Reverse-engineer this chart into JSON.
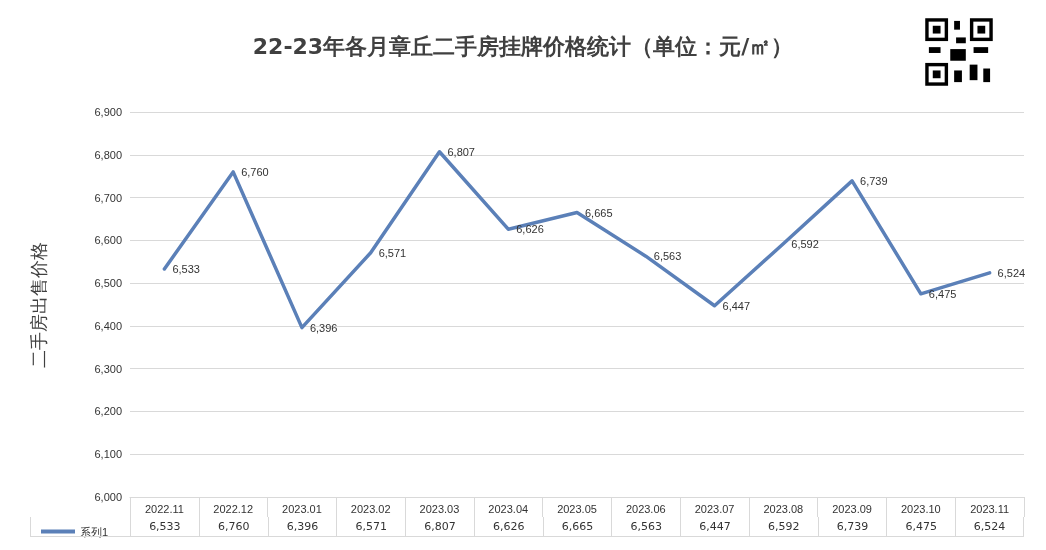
{
  "chart_data": {
    "type": "line",
    "title": "22-23年各月章丘二手房挂牌价格统计（单位：元/㎡）",
    "ylabel": "二手房出售价格",
    "categories": [
      "2022.11",
      "2022.12",
      "2023.01",
      "2023.02",
      "2023.03",
      "2023.04",
      "2023.05",
      "2023.06",
      "2023.07",
      "2023.08",
      "2023.09",
      "2023.10",
      "2023.11"
    ],
    "series": [
      {
        "name": "系列1",
        "color": "#5b80b8",
        "values": [
          6533,
          6760,
          6396,
          6571,
          6807,
          6626,
          6665,
          6563,
          6447,
          6592,
          6739,
          6475,
          6524
        ],
        "value_labels": [
          "6,533",
          "6,760",
          "6,396",
          "6,571",
          "6,807",
          "6,626",
          "6,665",
          "6,563",
          "6,447",
          "6,592",
          "6,739",
          "6,475",
          "6,524"
        ]
      }
    ],
    "ylim": [
      6000,
      6900
    ],
    "yticks": [
      {
        "value": 6000,
        "label": "6,000"
      },
      {
        "value": 6100,
        "label": "6,100"
      },
      {
        "value": 6200,
        "label": "6,200"
      },
      {
        "value": 6300,
        "label": "6,300"
      },
      {
        "value": 6400,
        "label": "6,400"
      },
      {
        "value": 6500,
        "label": "6,500"
      },
      {
        "value": 6600,
        "label": "6,600"
      },
      {
        "value": 6700,
        "label": "6,700"
      },
      {
        "value": 6800,
        "label": "6,800"
      },
      {
        "value": 6900,
        "label": "6,900"
      }
    ],
    "grid": "y",
    "legend": "bottom",
    "marker": "none",
    "line_style": "solid"
  }
}
